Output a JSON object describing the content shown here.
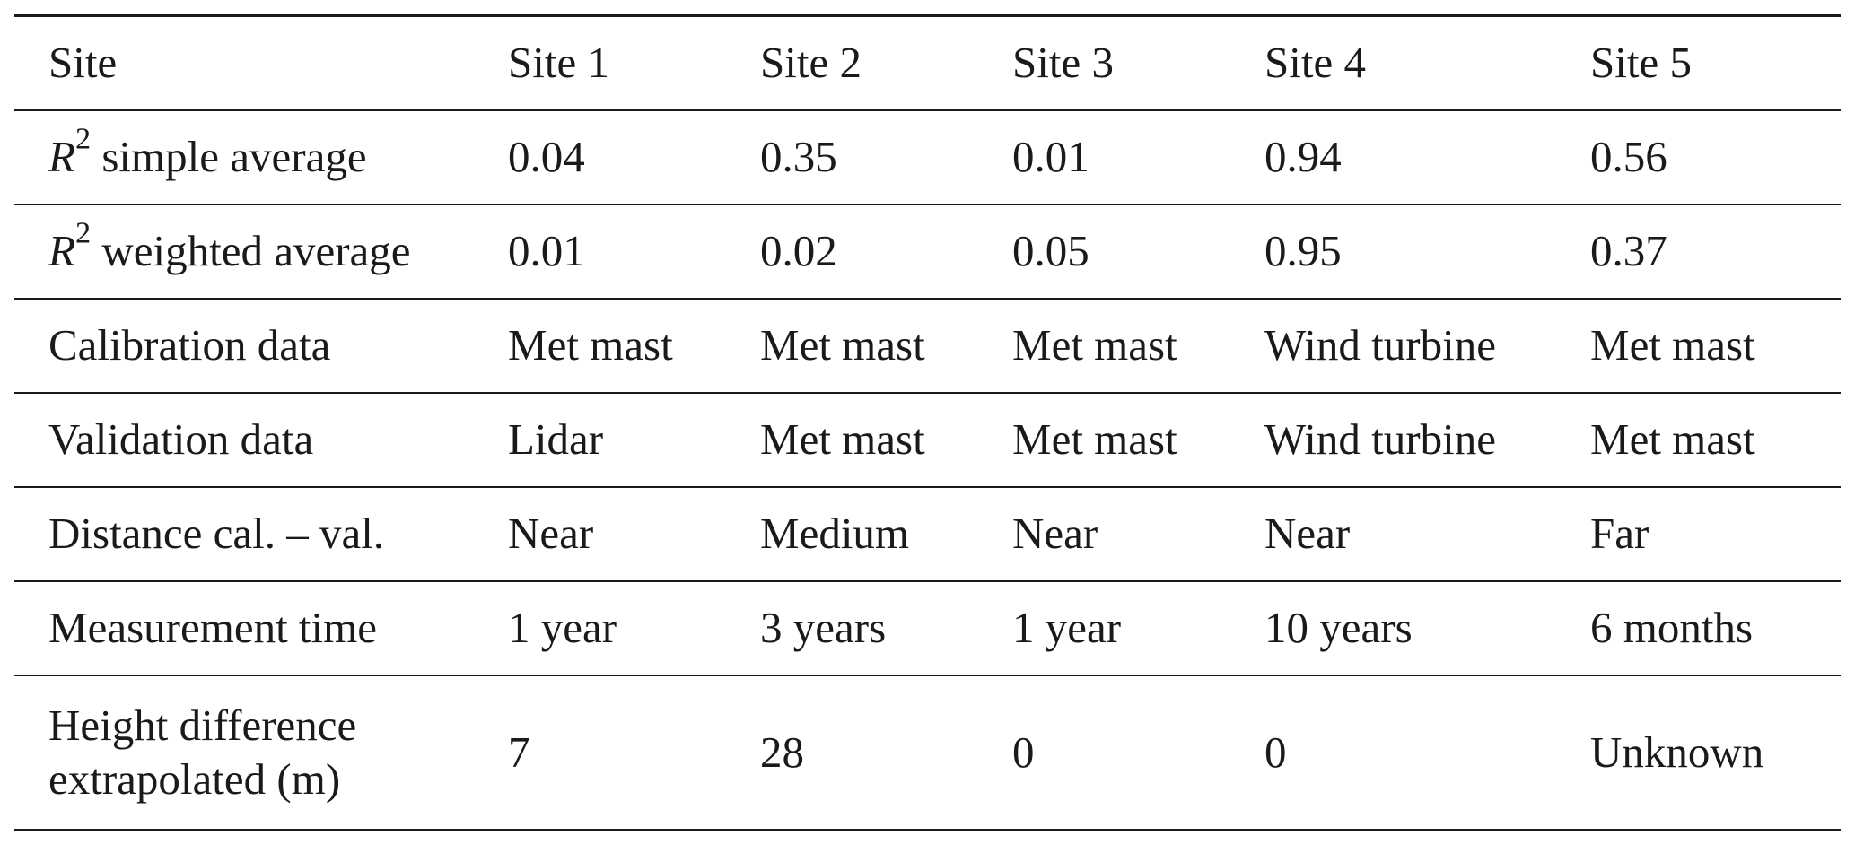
{
  "table": {
    "header": {
      "label": "Site",
      "sites": [
        "Site 1",
        "Site 2",
        "Site 3",
        "Site 4",
        "Site 5"
      ]
    },
    "rows": [
      {
        "label_var": "R",
        "label_sup": "2",
        "label_rest": " simple average",
        "values": [
          "0.04",
          "0.35",
          "0.01",
          "0.94",
          "0.56"
        ]
      },
      {
        "label_var": "R",
        "label_sup": "2",
        "label_rest": " weighted average",
        "values": [
          "0.01",
          "0.02",
          "0.05",
          "0.95",
          "0.37"
        ]
      },
      {
        "label": "Calibration data",
        "values": [
          "Met mast",
          "Met mast",
          "Met mast",
          "Wind turbine",
          "Met mast"
        ]
      },
      {
        "label": "Validation data",
        "values": [
          "Lidar",
          "Met mast",
          "Met mast",
          "Wind turbine",
          "Met mast"
        ]
      },
      {
        "label": "Distance cal. – val.",
        "values": [
          "Near",
          "Medium",
          "Near",
          "Near",
          "Far"
        ]
      },
      {
        "label": "Measurement time",
        "values": [
          "1 year",
          "3 years",
          "1 year",
          "10 years",
          "6 months"
        ]
      },
      {
        "label_line1": "Height difference",
        "label_line2": "extrapolated (m)",
        "values": [
          "7",
          "28",
          "0",
          "0",
          "Unknown"
        ]
      }
    ]
  }
}
